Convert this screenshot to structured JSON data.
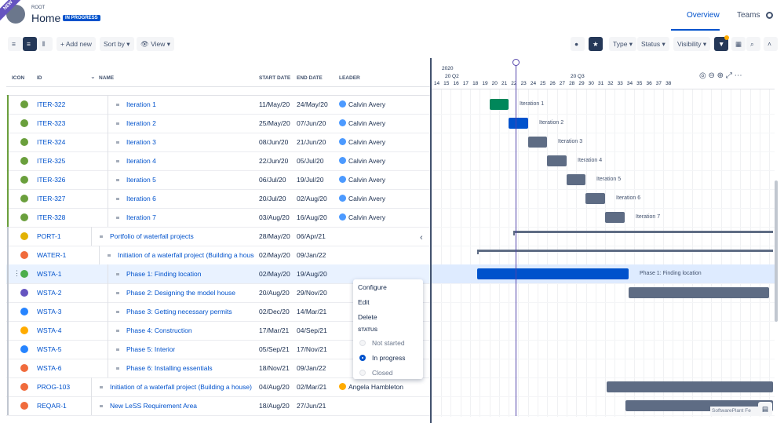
{
  "header": {
    "badge": "NEW",
    "breadcrumb": "ROOT",
    "title": "Home",
    "status": "IN PROGRESS",
    "tabs": [
      "Overview",
      "Teams"
    ]
  },
  "toolbar": {
    "add": "Add new",
    "sort": "Sort by",
    "view": "View",
    "filters": [
      "Type",
      "Status",
      "Visibility"
    ]
  },
  "table": {
    "columns": [
      "ICON",
      "ID",
      "NAME",
      "START DATE",
      "END DATE",
      "LEADER"
    ],
    "rows": [
      {
        "id": "ITER-322",
        "name": "Iteration 1",
        "start": "11/May/20",
        "end": "24/May/20",
        "leader": "Calvin Avery"
      },
      {
        "id": "ITER-323",
        "name": "Iteration 2",
        "start": "25/May/20",
        "end": "07/Jun/20",
        "leader": "Calvin Avery"
      },
      {
        "id": "ITER-324",
        "name": "Iteration 3",
        "start": "08/Jun/20",
        "end": "21/Jun/20",
        "leader": "Calvin Avery"
      },
      {
        "id": "ITER-325",
        "name": "Iteration 4",
        "start": "22/Jun/20",
        "end": "05/Jul/20",
        "leader": "Calvin Avery"
      },
      {
        "id": "ITER-326",
        "name": "Iteration 5",
        "start": "06/Jul/20",
        "end": "19/Jul/20",
        "leader": "Calvin Avery"
      },
      {
        "id": "ITER-327",
        "name": "Iteration 6",
        "start": "20/Jul/20",
        "end": "02/Aug/20",
        "leader": "Calvin Avery"
      },
      {
        "id": "ITER-328",
        "name": "Iteration 7",
        "start": "03/Aug/20",
        "end": "16/Aug/20",
        "leader": "Calvin Avery"
      },
      {
        "id": "PORT-1",
        "name": "Portfolio of waterfall projects",
        "start": "28/May/20",
        "end": "06/Apr/21"
      },
      {
        "id": "WATER-1",
        "name": "Initiation of a waterfall project (Building a house",
        "start": "02/May/20",
        "end": "09/Jan/22"
      },
      {
        "id": "WSTA-1",
        "name": "Phase 1: Finding location",
        "start": "02/May/20",
        "end": "19/Aug/20"
      },
      {
        "id": "WSTA-2",
        "name": "Phase 2: Designing the model house",
        "start": "20/Aug/20",
        "end": "29/Nov/20"
      },
      {
        "id": "WSTA-3",
        "name": "Phase 3: Getting necessary permits",
        "start": "02/Dec/20",
        "end": "14/Mar/21"
      },
      {
        "id": "WSTA-4",
        "name": "Phase 4: Construction",
        "start": "17/Mar/21",
        "end": "04/Sep/21"
      },
      {
        "id": "WSTA-5",
        "name": "Phase 5: Interior",
        "start": "05/Sep/21",
        "end": "17/Nov/21"
      },
      {
        "id": "WSTA-6",
        "name": "Phase 6: Installing essentials",
        "start": "18/Nov/21",
        "end": "09/Jan/22"
      },
      {
        "id": "PROG-103",
        "name": "Initiation of a waterfall project (Building a house)",
        "start": "04/Aug/20",
        "end": "02/Mar/21",
        "leader": "Angela Hambleton"
      },
      {
        "id": "REQAR-1",
        "name": "New LeSS Requirement Area",
        "start": "18/Aug/20",
        "end": "27/Jun/21"
      }
    ]
  },
  "timeline": {
    "year": "2020",
    "quarters": [
      "20 Q2",
      "20 Q3"
    ],
    "weeks": [
      14,
      15,
      16,
      17,
      18,
      19,
      20,
      21,
      22,
      23,
      24,
      25,
      26,
      27,
      28,
      29,
      30,
      31,
      32,
      33,
      34,
      35,
      36,
      37,
      38
    ]
  },
  "menu": {
    "items": [
      "Configure",
      "Edit",
      "Delete"
    ],
    "status_heading": "STATUS",
    "options": [
      "Not started",
      "In progress",
      "Closed"
    ]
  },
  "watermark": "SoftwarePlant Fe"
}
